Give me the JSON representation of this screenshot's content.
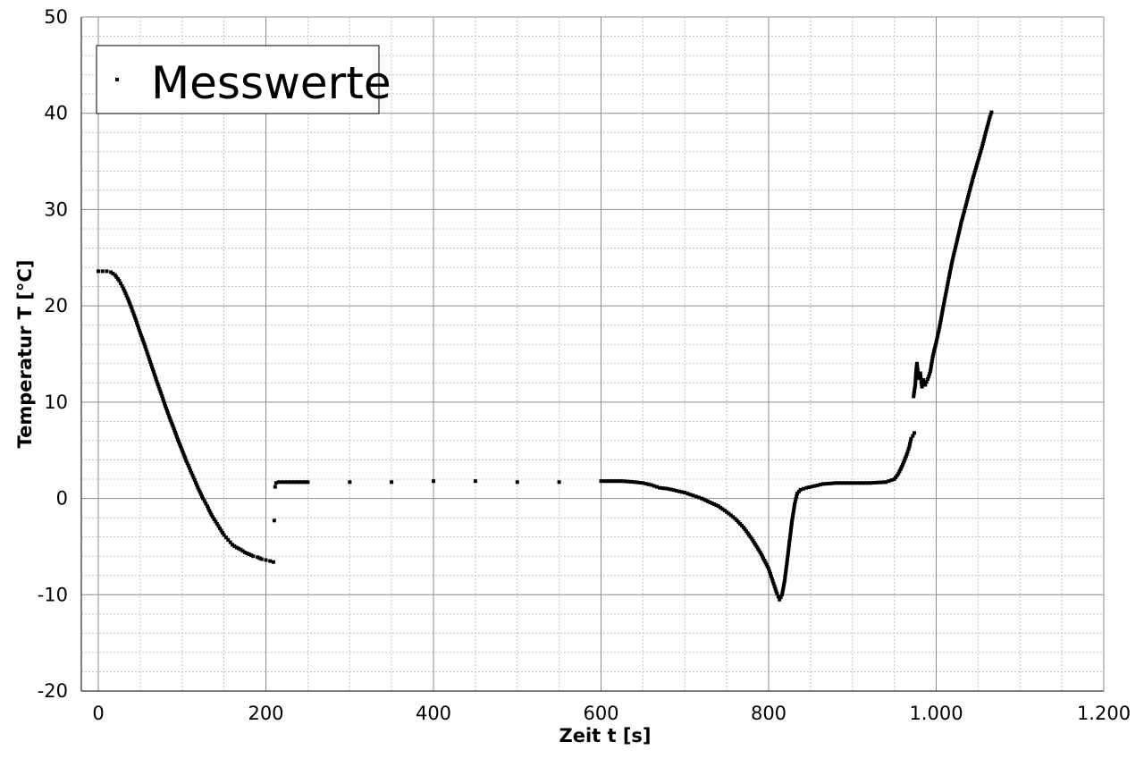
{
  "chart_data": {
    "type": "scatter",
    "xlabel": "Zeit t [s]",
    "ylabel": "Temperatur T [°C]",
    "xlim": [
      0,
      1200
    ],
    "ylim": [
      -20,
      50
    ],
    "x_ticks": [
      0,
      200,
      400,
      600,
      800,
      1000,
      1200
    ],
    "x_tick_labels": [
      "0",
      "200",
      "400",
      "600",
      "800",
      "1.000",
      "1.200"
    ],
    "y_ticks": [
      -20,
      -10,
      0,
      10,
      20,
      30,
      40,
      50
    ],
    "y_tick_labels": [
      "-20",
      "-10",
      "0",
      "10",
      "20",
      "30",
      "40",
      "50"
    ],
    "grid": true,
    "legend": {
      "position": "top-left",
      "entries": [
        "Messwerte"
      ]
    },
    "series": [
      {
        "name": "Messwerte",
        "color": "#000000",
        "points": [
          [
            0,
            23.6
          ],
          [
            5,
            23.6
          ],
          [
            10,
            23.6
          ],
          [
            15,
            23.5
          ],
          [
            20,
            23.2
          ],
          [
            25,
            22.6
          ],
          [
            30,
            21.8
          ],
          [
            35,
            20.8
          ],
          [
            40,
            19.7
          ],
          [
            45,
            18.5
          ],
          [
            50,
            17.2
          ],
          [
            55,
            16.0
          ],
          [
            60,
            14.7
          ],
          [
            65,
            13.4
          ],
          [
            70,
            12.1
          ],
          [
            75,
            10.9
          ],
          [
            80,
            9.6
          ],
          [
            85,
            8.4
          ],
          [
            90,
            7.3
          ],
          [
            95,
            6.1
          ],
          [
            100,
            5.0
          ],
          [
            105,
            3.9
          ],
          [
            110,
            2.9
          ],
          [
            115,
            1.9
          ],
          [
            120,
            0.9
          ],
          [
            125,
            0.0
          ],
          [
            130,
            -0.8
          ],
          [
            135,
            -1.7
          ],
          [
            140,
            -2.4
          ],
          [
            145,
            -3.1
          ],
          [
            150,
            -3.8
          ],
          [
            155,
            -4.3
          ],
          [
            160,
            -4.8
          ],
          [
            165,
            -5.1
          ],
          [
            170,
            -5.3
          ],
          [
            175,
            -5.6
          ],
          [
            180,
            -5.8
          ],
          [
            185,
            -6.0
          ],
          [
            190,
            -6.1
          ],
          [
            195,
            -6.3
          ],
          [
            200,
            -6.4
          ],
          [
            205,
            -6.5
          ],
          [
            209,
            -6.6
          ],
          [
            210,
            -2.3
          ],
          [
            211,
            1.2
          ],
          [
            212,
            1.6
          ],
          [
            215,
            1.7
          ],
          [
            225,
            1.7
          ],
          [
            250,
            1.7
          ],
          [
            300,
            1.7
          ],
          [
            350,
            1.7
          ],
          [
            400,
            1.8
          ],
          [
            450,
            1.8
          ],
          [
            500,
            1.7
          ],
          [
            550,
            1.7
          ],
          [
            600,
            1.8
          ],
          [
            625,
            1.8
          ],
          [
            640,
            1.7
          ],
          [
            650,
            1.6
          ],
          [
            660,
            1.4
          ],
          [
            670,
            1.1
          ],
          [
            680,
            1.0
          ],
          [
            690,
            0.8
          ],
          [
            700,
            0.6
          ],
          [
            710,
            0.3
          ],
          [
            720,
            0.0
          ],
          [
            730,
            -0.4
          ],
          [
            740,
            -0.8
          ],
          [
            750,
            -1.4
          ],
          [
            760,
            -2.1
          ],
          [
            770,
            -3.0
          ],
          [
            780,
            -4.2
          ],
          [
            790,
            -5.6
          ],
          [
            800,
            -7.3
          ],
          [
            805,
            -8.6
          ],
          [
            810,
            -9.9
          ],
          [
            813,
            -10.5
          ],
          [
            816,
            -10.0
          ],
          [
            819,
            -8.6
          ],
          [
            822,
            -6.6
          ],
          [
            825,
            -4.4
          ],
          [
            828,
            -2.3
          ],
          [
            831,
            -0.6
          ],
          [
            834,
            0.5
          ],
          [
            838,
            0.9
          ],
          [
            845,
            1.1
          ],
          [
            855,
            1.3
          ],
          [
            865,
            1.5
          ],
          [
            880,
            1.6
          ],
          [
            900,
            1.6
          ],
          [
            920,
            1.6
          ],
          [
            940,
            1.7
          ],
          [
            950,
            2.0
          ],
          [
            955,
            2.6
          ],
          [
            960,
            3.5
          ],
          [
            965,
            4.6
          ],
          [
            968,
            5.4
          ],
          [
            970,
            6.2
          ],
          [
            972,
            6.5
          ],
          [
            974,
            6.8
          ],
          [
            973,
            10.6
          ],
          [
            975,
            11.8
          ],
          [
            976,
            13.2
          ],
          [
            977,
            14.0
          ],
          [
            979,
            12.5
          ],
          [
            981,
            13.0
          ],
          [
            983,
            11.6
          ],
          [
            985,
            12.3
          ],
          [
            987,
            11.8
          ],
          [
            990,
            12.4
          ],
          [
            993,
            13.2
          ],
          [
            996,
            14.8
          ],
          [
            1000,
            16.2
          ],
          [
            1004,
            17.8
          ],
          [
            1008,
            19.7
          ],
          [
            1012,
            21.5
          ],
          [
            1016,
            23.3
          ],
          [
            1020,
            25.0
          ],
          [
            1025,
            26.8
          ],
          [
            1030,
            28.7
          ],
          [
            1035,
            30.3
          ],
          [
            1040,
            32.0
          ],
          [
            1045,
            33.6
          ],
          [
            1050,
            35.1
          ],
          [
            1055,
            36.6
          ],
          [
            1060,
            38.3
          ],
          [
            1064,
            39.6
          ],
          [
            1066,
            40.1
          ]
        ]
      }
    ]
  }
}
